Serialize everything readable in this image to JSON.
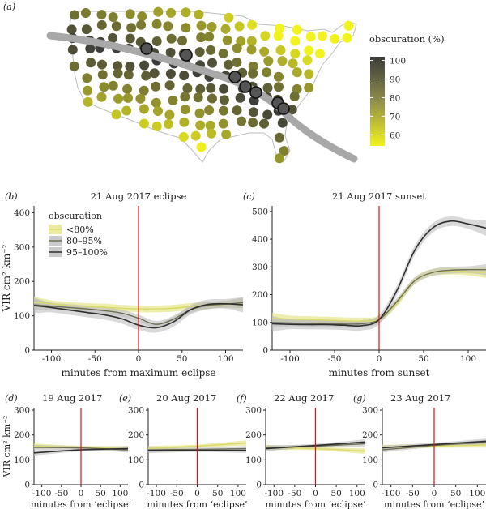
{
  "panel_a": {
    "label": "(a)",
    "legend": {
      "title": "obscuration (%)",
      "ticks": [
        100,
        90,
        80,
        70,
        60
      ]
    },
    "colors": {
      "low": "#f2f21e",
      "high": "#3b3b3b",
      "path": "#a8a8a8"
    }
  },
  "chart_data": [
    {
      "type": "line",
      "id": "b",
      "panel_label": "(b)",
      "title": "21 Aug 2017 eclipse",
      "xlabel": "minutes from maximum eclipse",
      "ylabel": "VIR cm² km⁻²",
      "xlim": [
        -120,
        120
      ],
      "ylim": [
        0,
        420
      ],
      "xticks": [
        -100,
        -50,
        0,
        50,
        100
      ],
      "yticks": [
        0,
        100,
        200,
        300,
        400
      ],
      "vline": 0,
      "legend": {
        "title": "obscuration",
        "position": "top-left"
      },
      "x": [
        -120,
        -100,
        -80,
        -60,
        -40,
        -20,
        0,
        20,
        40,
        60,
        80,
        100,
        120
      ],
      "series": [
        {
          "name": "<80%",
          "color": "#dada6a",
          "values": [
            140,
            135,
            130,
            127,
            125,
            122,
            120,
            120,
            122,
            127,
            130,
            133,
            137
          ]
        },
        {
          "name": "80–95%",
          "color": "#6e6e55",
          "values": [
            132,
            128,
            124,
            120,
            115,
            108,
            93,
            75,
            90,
            118,
            130,
            134,
            138
          ]
        },
        {
          "name": "95–100%",
          "color": "#2f2f2f",
          "values": [
            130,
            124,
            117,
            110,
            103,
            92,
            73,
            65,
            82,
            118,
            133,
            135,
            132
          ]
        }
      ]
    },
    {
      "type": "line",
      "id": "c",
      "panel_label": "(c)",
      "title": "21 Aug 2017 sunset",
      "xlabel": "minutes from sunset",
      "ylabel": "",
      "xlim": [
        -120,
        120
      ],
      "ylim": [
        0,
        520
      ],
      "xticks": [
        -100,
        -50,
        0,
        50,
        100
      ],
      "yticks": [
        0,
        100,
        200,
        300,
        400,
        500
      ],
      "vline": 0,
      "x": [
        -120,
        -100,
        -80,
        -60,
        -40,
        -20,
        0,
        20,
        40,
        60,
        80,
        100,
        120
      ],
      "series": [
        {
          "name": "<80%",
          "color": "#dada6a",
          "values": [
            115,
            112,
            110,
            108,
            106,
            105,
            112,
            170,
            250,
            280,
            285,
            282,
            280
          ]
        },
        {
          "name": "80–95%",
          "color": "#6e6e55",
          "values": [
            100,
            98,
            96,
            95,
            94,
            95,
            110,
            175,
            250,
            280,
            288,
            290,
            290
          ]
        },
        {
          "name": "95–100%",
          "color": "#2f2f2f",
          "values": [
            95,
            93,
            92,
            92,
            90,
            88,
            110,
            215,
            360,
            440,
            465,
            455,
            440
          ]
        }
      ]
    },
    {
      "type": "line",
      "id": "d",
      "panel_label": "(d)",
      "title": "19 Aug 2017",
      "xlabel": "minutes from ‘eclipse’",
      "ylabel": "VIR cm² km⁻²",
      "xlim": [
        -120,
        120
      ],
      "ylim": [
        0,
        310
      ],
      "xticks": [
        -100,
        -50,
        0,
        50,
        100
      ],
      "yticks": [
        0,
        100,
        200,
        300
      ],
      "vline": 0,
      "x": [
        -120,
        0,
        120
      ],
      "series": [
        {
          "name": "<80%",
          "color": "#dada6a",
          "values": [
            155,
            150,
            145
          ]
        },
        {
          "name": "80–95%",
          "color": "#6e6e55",
          "values": [
            150,
            148,
            140
          ]
        },
        {
          "name": "95–100%",
          "color": "#2f2f2f",
          "values": [
            128,
            140,
            145
          ]
        }
      ]
    },
    {
      "type": "line",
      "id": "e",
      "panel_label": "(e)",
      "title": "20 Aug 2017",
      "xlabel": "minutes from ‘eclipse’",
      "ylabel": "",
      "xlim": [
        -120,
        120
      ],
      "ylim": [
        0,
        310
      ],
      "xticks": [
        -100,
        -50,
        0,
        50,
        100
      ],
      "yticks": [
        0,
        100,
        200,
        300
      ],
      "vline": 0,
      "x": [
        -120,
        0,
        120
      ],
      "series": [
        {
          "name": "<80%",
          "color": "#dada6a",
          "values": [
            145,
            155,
            168
          ]
        },
        {
          "name": "80–95%",
          "color": "#6e6e55",
          "values": [
            140,
            142,
            145
          ]
        },
        {
          "name": "95–100%",
          "color": "#2f2f2f",
          "values": [
            138,
            138,
            138
          ]
        }
      ]
    },
    {
      "type": "line",
      "id": "f",
      "panel_label": "(f)",
      "title": "22 Aug 2017",
      "xlabel": "minutes from ‘eclipse’",
      "ylabel": "",
      "xlim": [
        -120,
        120
      ],
      "ylim": [
        0,
        310
      ],
      "xticks": [
        -100,
        -50,
        0,
        50,
        100
      ],
      "yticks": [
        0,
        100,
        200,
        300
      ],
      "vline": 0,
      "x": [
        -120,
        0,
        120
      ],
      "series": [
        {
          "name": "<80%",
          "color": "#dada6a",
          "values": [
            150,
            145,
            135
          ]
        },
        {
          "name": "80–95%",
          "color": "#6e6e55",
          "values": [
            148,
            155,
            165
          ]
        },
        {
          "name": "95–100%",
          "color": "#2f2f2f",
          "values": [
            145,
            158,
            172
          ]
        }
      ]
    },
    {
      "type": "line",
      "id": "g",
      "panel_label": "(g)",
      "title": "23 Aug 2017",
      "xlabel": "minutes from ‘eclipse’",
      "ylabel": "",
      "xlim": [
        -120,
        120
      ],
      "ylim": [
        0,
        310
      ],
      "xticks": [
        -100,
        -50,
        0,
        50,
        100
      ],
      "yticks": [
        0,
        100,
        200,
        300
      ],
      "vline": 0,
      "x": [
        -120,
        0,
        120
      ],
      "series": [
        {
          "name": "<80%",
          "color": "#dada6a",
          "values": [
            150,
            155,
            160
          ]
        },
        {
          "name": "80–95%",
          "color": "#6e6e55",
          "values": [
            140,
            158,
            170
          ]
        },
        {
          "name": "95–100%",
          "color": "#2f2f2f",
          "values": [
            148,
            162,
            175
          ]
        }
      ]
    }
  ]
}
